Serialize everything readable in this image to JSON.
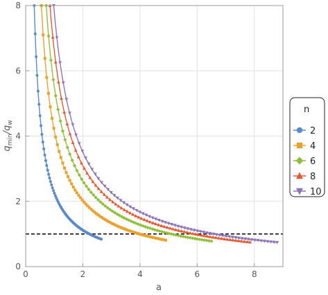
{
  "chart_data": {
    "type": "line",
    "xlabel": "a",
    "ylabel_main": "q",
    "ylabel_sub1": "min",
    "ylabel_mid": "/q",
    "ylabel_sub2": "w",
    "xlim": [
      0,
      9.0
    ],
    "ylim": [
      0,
      8
    ],
    "xticks": [
      0,
      2,
      4,
      6,
      8
    ],
    "yticks": [
      0,
      2,
      4,
      6,
      8
    ],
    "grid": true,
    "reference_line": {
      "y": 1.0,
      "style": "dashed",
      "color": "#000000"
    },
    "legend": {
      "title": "n",
      "placement": "right",
      "entries": [
        "2",
        "4",
        "6",
        "8",
        "10"
      ]
    },
    "series": [
      {
        "name": "2",
        "color": "#5b8bc6",
        "marker": "circle",
        "x_start": 0.3,
        "x_end": 2.65,
        "y_end": 0.84
      },
      {
        "name": "4",
        "color": "#e8a22e",
        "marker": "square",
        "x_start": 0.55,
        "x_end": 4.9,
        "y_end": 0.81
      },
      {
        "name": "6",
        "color": "#8fbf3a",
        "marker": "diamond",
        "x_start": 0.72,
        "x_end": 6.5,
        "y_end": 0.78
      },
      {
        "name": "8",
        "color": "#e35a32",
        "marker": "triangle-up",
        "x_start": 0.85,
        "x_end": 7.85,
        "y_end": 0.75
      },
      {
        "name": "10",
        "color": "#8d73b5",
        "marker": "triangle-down",
        "x_start": 0.98,
        "x_end": 8.8,
        "y_end": 0.74
      }
    ]
  }
}
